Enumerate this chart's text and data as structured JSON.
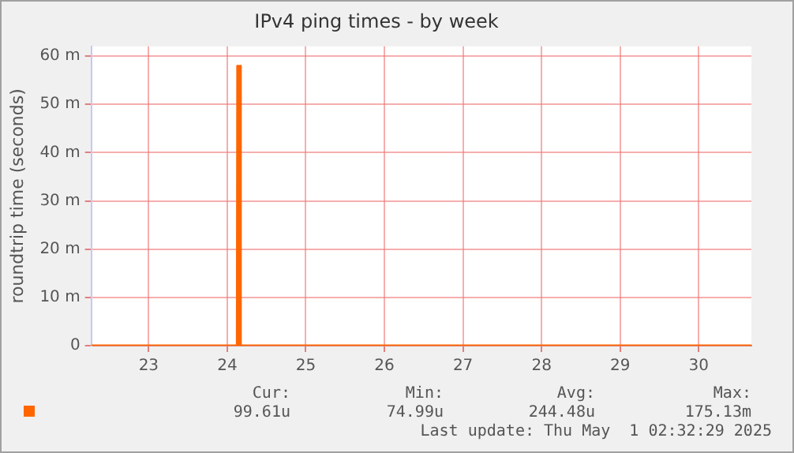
{
  "chart_data": {
    "type": "area",
    "title": "IPv4 ping times - by week",
    "ylabel": "roundtrip time (seconds)",
    "x": [
      22.27,
      23.0,
      23.5,
      24.0,
      24.12,
      24.125,
      24.17,
      24.175,
      24.5,
      25.0,
      26.0,
      27.0,
      28.0,
      29.0,
      30.0,
      30.67
    ],
    "series": [
      {
        "color": "#ff6600",
        "values": [
          0.1,
          0.1,
          0.1,
          0.1,
          0.1,
          58,
          58,
          0.1,
          0.1,
          0.1,
          0.1,
          0.1,
          0.1,
          0.1,
          0.1,
          0.1
        ]
      }
    ],
    "xlim": [
      22.27,
      30.67
    ],
    "xticks": [
      23,
      24,
      25,
      26,
      27,
      28,
      29,
      30
    ],
    "ylim": [
      0,
      62
    ],
    "yticks": [
      0,
      {
        "value": 10,
        "label": "10 m"
      },
      {
        "value": 20,
        "label": "20 m"
      },
      {
        "value": 30,
        "label": "30 m"
      },
      {
        "value": 40,
        "label": "40 m"
      },
      {
        "value": 50,
        "label": "50 m"
      },
      {
        "value": 60,
        "label": "60 m"
      }
    ],
    "grid": true,
    "legend": false,
    "annotations": [
      "Cur:",
      "Min:",
      "Avg:",
      "Max:",
      "99.61u",
      "74.99u",
      "244.48u",
      "175.13m",
      "Last update: Thu May  1 02:32:29 2025"
    ]
  }
}
